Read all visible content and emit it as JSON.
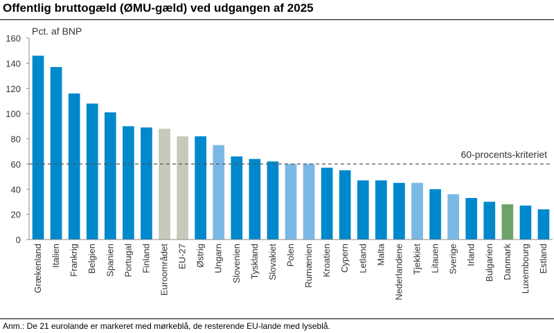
{
  "title": "Offentlig bruttogæld (ØMU-gæld) ved udgangen af 2025",
  "note": "Anm.: De 21 eurolande er markeret med mørkeblå, de resterende EU-lande med lyseblå.",
  "colors": {
    "euro": "#0088cc",
    "non_euro": "#7ab8e6",
    "aggregate": "#c8c8bc",
    "denmark": "#6da369",
    "reference_line": "#555555",
    "axis": "#888888"
  },
  "chart_data": {
    "type": "bar",
    "ylabel": "Pct. af BNP",
    "ylim": [
      0,
      160
    ],
    "yticks": [
      0,
      20,
      40,
      60,
      80,
      100,
      120,
      140,
      160
    ],
    "grid": false,
    "reference_line": {
      "value": 60,
      "label": "60-procents-kriteriet"
    },
    "categories": [
      "Grækenland",
      "Italien",
      "Frankrig",
      "Belgien",
      "Spanien",
      "Portugal",
      "Finland",
      "Euroområdet",
      "EU-27",
      "Østrig",
      "Ungarn",
      "Slovenien",
      "Tyskland",
      "Slovakiet",
      "Polen",
      "Rumænien",
      "Kroatien",
      "Cypern",
      "Letland",
      "Malta",
      "Nederlandene",
      "Tjekkiet",
      "Litauen",
      "Sverige",
      "Irland",
      "Bulgarien",
      "Danmark",
      "Luxembourg",
      "Estland"
    ],
    "values": [
      146,
      137,
      116,
      108,
      101,
      90,
      89,
      88,
      82,
      82,
      75,
      66,
      64,
      62,
      60,
      60,
      57,
      55,
      47,
      47,
      45,
      45,
      40,
      36,
      33,
      30,
      28,
      27,
      24
    ],
    "groups": [
      "euro",
      "euro",
      "euro",
      "euro",
      "euro",
      "euro",
      "euro",
      "aggregate",
      "aggregate",
      "euro",
      "non_euro",
      "euro",
      "euro",
      "euro",
      "non_euro",
      "non_euro",
      "euro",
      "euro",
      "euro",
      "euro",
      "euro",
      "non_euro",
      "euro",
      "non_euro",
      "euro",
      "euro",
      "denmark",
      "euro",
      "euro"
    ]
  }
}
